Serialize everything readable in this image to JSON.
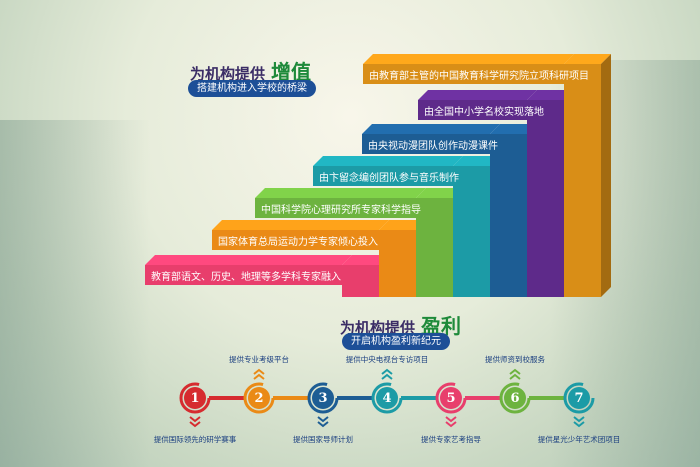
{
  "top": {
    "prefix": "为机构提供",
    "highlight": "增值",
    "subtitle": "搭建机构进入学校的桥梁"
  },
  "steps": [
    {
      "label": "教育部语文、历史、地理等多学科专家融入",
      "color": "#e83e6c"
    },
    {
      "label": "国家体育总局运动力学专家倾心投入",
      "color": "#ea8a16"
    },
    {
      "label": "中国科学院心理研究所专家科学指导",
      "color": "#6db33f"
    },
    {
      "label": "由卞留念编创团队参与音乐制作",
      "color": "#1c9ba6"
    },
    {
      "label": "由央视动漫团队创作动漫课件",
      "color": "#1d5d94"
    },
    {
      "label": "由全国中小学名校实现落地",
      "color": "#5e2a8a"
    },
    {
      "label": "由教育部主管的中国教育科学研究院立项科研项目",
      "color": "#d98e17"
    }
  ],
  "bottom": {
    "prefix": "为机构提供",
    "highlight": "盈利",
    "subtitle": "开启机构盈利新纪元"
  },
  "timeline": [
    {
      "num": "1",
      "label": "提供国际领先的研学赛事",
      "pos": "below",
      "color": "#d62b2f"
    },
    {
      "num": "2",
      "label": "提供专业考级平台",
      "pos": "above",
      "color": "#ea8a16"
    },
    {
      "num": "3",
      "label": "提供国家导师计划",
      "pos": "below",
      "color": "#1d5d94"
    },
    {
      "num": "4",
      "label": "提供中央电视台专访项目",
      "pos": "above",
      "color": "#1c9ba6"
    },
    {
      "num": "5",
      "label": "提供专家艺考指导",
      "pos": "below",
      "color": "#e83e6c"
    },
    {
      "num": "6",
      "label": "提供师资到校服务",
      "pos": "above",
      "color": "#6db33f"
    },
    {
      "num": "7",
      "label": "提供星光少年艺术团项目",
      "pos": "below",
      "color": "#1c9ba6"
    }
  ]
}
